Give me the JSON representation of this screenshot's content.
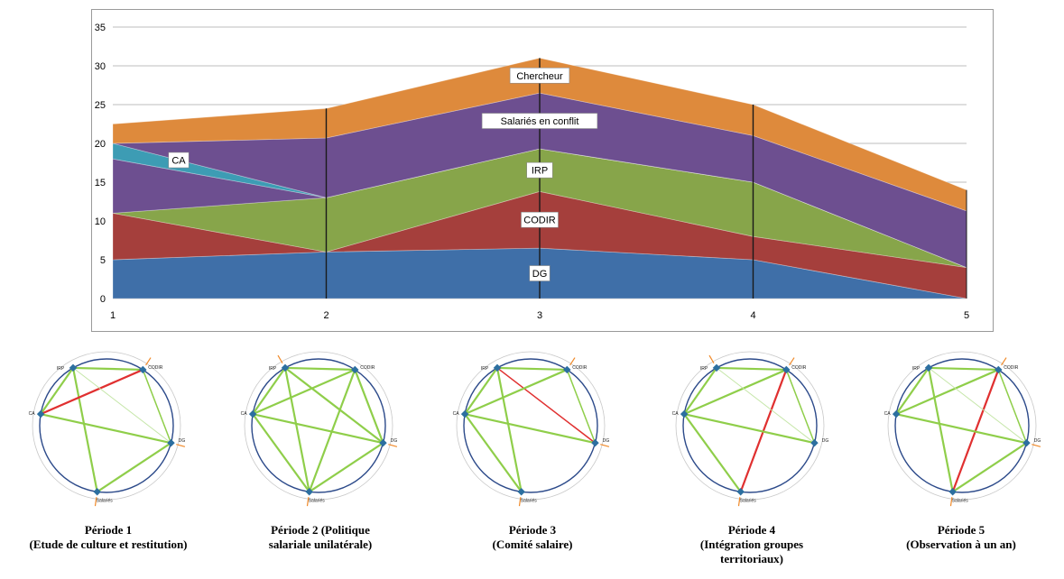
{
  "chart_data": {
    "type": "area",
    "x": [
      1,
      2,
      3,
      4,
      5
    ],
    "ylim": [
      0,
      35
    ],
    "yticks": [
      0,
      5,
      10,
      15,
      20,
      25,
      30,
      35
    ],
    "grid": true,
    "series": [
      {
        "name": "DG",
        "values": [
          5,
          6,
          6.5,
          5,
          0
        ],
        "color": "#3f6fa8"
      },
      {
        "name": "CODIR",
        "values": [
          6,
          0,
          7.3,
          3,
          4
        ],
        "color": "#a53f3c"
      },
      {
        "name": "IRP",
        "values": [
          0,
          7,
          5.5,
          7,
          0
        ],
        "color": "#87a54a"
      },
      {
        "name": "",
        "values": [
          7,
          0,
          0,
          0,
          0
        ],
        "color": "#6d4f90"
      },
      {
        "name": "CA",
        "values": [
          2,
          0,
          0,
          0,
          0
        ],
        "color": "#3d9cb4"
      },
      {
        "name": "Salariés en conflit",
        "values": [
          0,
          7.7,
          7.2,
          6,
          7.3
        ],
        "color": "#6d4f90"
      },
      {
        "name": "Chercheur",
        "values": [
          2.5,
          3.8,
          4.5,
          4,
          2.7
        ],
        "color": "#de8a3c"
      }
    ]
  },
  "networks": [
    {
      "caption_line1": "Période 1",
      "caption_line2": "(Etude de culture et restitution)",
      "caption_line3": "",
      "nodes": {
        "irp": "IRP",
        "codir": "CODIR",
        "dg": "DG",
        "ca": "CA",
        "salaries": "Salariés"
      },
      "edges": [
        {
          "from": "irp",
          "to": "codir",
          "color": "#8fce4a",
          "weight": "strong"
        },
        {
          "from": "irp",
          "to": "salaries",
          "color": "#8fce4a",
          "weight": "strong"
        },
        {
          "from": "irp",
          "to": "ca",
          "color": "#8fce4a",
          "weight": "strong"
        },
        {
          "from": "codir",
          "to": "dg",
          "color": "#8fce4a",
          "weight": "medium"
        },
        {
          "from": "codir",
          "to": "ca",
          "color": "#e03030",
          "weight": "strong"
        },
        {
          "from": "dg",
          "to": "ca",
          "color": "#8fce4a",
          "weight": "strong"
        },
        {
          "from": "dg",
          "to": "salaries",
          "color": "#8fce4a",
          "weight": "strong"
        },
        {
          "from": "irp",
          "to": "dg",
          "color": "#c5e6a8",
          "weight": "light"
        }
      ],
      "tension_marks": [
        "codir",
        "dg",
        "salaries"
      ]
    },
    {
      "caption_line1": "Période 2 (Politique",
      "caption_line2": "salariale unilatérale)",
      "caption_line3": "",
      "nodes": {
        "irp": "IRP",
        "codir": "CODIR",
        "dg": "DG",
        "ca": "CA",
        "salaries": "Salariés"
      },
      "edges": [
        {
          "from": "irp",
          "to": "codir",
          "color": "#8fce4a",
          "weight": "strong"
        },
        {
          "from": "irp",
          "to": "ca",
          "color": "#8fce4a",
          "weight": "strong"
        },
        {
          "from": "irp",
          "to": "salaries",
          "color": "#8fce4a",
          "weight": "strong"
        },
        {
          "from": "irp",
          "to": "dg",
          "color": "#8fce4a",
          "weight": "strong"
        },
        {
          "from": "codir",
          "to": "dg",
          "color": "#8fce4a",
          "weight": "strong"
        },
        {
          "from": "codir",
          "to": "ca",
          "color": "#8fce4a",
          "weight": "strong"
        },
        {
          "from": "codir",
          "to": "salaries",
          "color": "#8fce4a",
          "weight": "strong"
        },
        {
          "from": "dg",
          "to": "ca",
          "color": "#8fce4a",
          "weight": "strong"
        },
        {
          "from": "dg",
          "to": "salaries",
          "color": "#8fce4a",
          "weight": "strong"
        },
        {
          "from": "ca",
          "to": "salaries",
          "color": "#8fce4a",
          "weight": "strong"
        }
      ],
      "tension_marks": [
        "irp",
        "dg",
        "salaries"
      ]
    },
    {
      "caption_line1": "Période 3",
      "caption_line2": "(Comité salaire)",
      "caption_line3": "",
      "nodes": {
        "irp": "IRP",
        "codir": "CODIR",
        "dg": "DG",
        "ca": "CA",
        "salaries": "Salariés"
      },
      "edges": [
        {
          "from": "irp",
          "to": "codir",
          "color": "#8fce4a",
          "weight": "strong"
        },
        {
          "from": "irp",
          "to": "ca",
          "color": "#8fce4a",
          "weight": "strong"
        },
        {
          "from": "irp",
          "to": "salaries",
          "color": "#8fce4a",
          "weight": "strong"
        },
        {
          "from": "irp",
          "to": "dg",
          "color": "#e03030",
          "weight": "medium"
        },
        {
          "from": "codir",
          "to": "dg",
          "color": "#8fce4a",
          "weight": "medium"
        },
        {
          "from": "codir",
          "to": "ca",
          "color": "#8fce4a",
          "weight": "strong"
        },
        {
          "from": "dg",
          "to": "ca",
          "color": "#8fce4a",
          "weight": "strong"
        },
        {
          "from": "ca",
          "to": "salaries",
          "color": "#8fce4a",
          "weight": "strong"
        }
      ],
      "tension_marks": [
        "codir",
        "dg",
        "salaries"
      ]
    },
    {
      "caption_line1": "Période 4",
      "caption_line2": "(Intégration groupes",
      "caption_line3": "territoriaux)",
      "nodes": {
        "irp": "IRP",
        "codir": "CODIR",
        "dg": "DG",
        "ca": "CA",
        "salaries": "Salariés"
      },
      "edges": [
        {
          "from": "irp",
          "to": "codir",
          "color": "#8fce4a",
          "weight": "strong"
        },
        {
          "from": "irp",
          "to": "ca",
          "color": "#8fce4a",
          "weight": "strong"
        },
        {
          "from": "codir",
          "to": "ca",
          "color": "#8fce4a",
          "weight": "strong"
        },
        {
          "from": "codir",
          "to": "salaries",
          "color": "#e03030",
          "weight": "strong"
        },
        {
          "from": "codir",
          "to": "dg",
          "color": "#8fce4a",
          "weight": "medium"
        },
        {
          "from": "dg",
          "to": "ca",
          "color": "#8fce4a",
          "weight": "strong"
        },
        {
          "from": "ca",
          "to": "salaries",
          "color": "#8fce4a",
          "weight": "strong"
        },
        {
          "from": "irp",
          "to": "dg",
          "color": "#c5e6a8",
          "weight": "light"
        }
      ],
      "tension_marks": [
        "irp",
        "codir",
        "salaries"
      ]
    },
    {
      "caption_line1": "Période 5",
      "caption_line2": "(Observation à un an)",
      "caption_line3": "",
      "nodes": {
        "irp": "IRP",
        "codir": "CODIR",
        "dg": "DG",
        "ca": "CA",
        "salaries": "Salariés"
      },
      "edges": [
        {
          "from": "irp",
          "to": "codir",
          "color": "#8fce4a",
          "weight": "strong"
        },
        {
          "from": "irp",
          "to": "ca",
          "color": "#8fce4a",
          "weight": "strong"
        },
        {
          "from": "irp",
          "to": "salaries",
          "color": "#8fce4a",
          "weight": "strong"
        },
        {
          "from": "codir",
          "to": "ca",
          "color": "#8fce4a",
          "weight": "strong"
        },
        {
          "from": "codir",
          "to": "salaries",
          "color": "#e03030",
          "weight": "strong"
        },
        {
          "from": "codir",
          "to": "dg",
          "color": "#8fce4a",
          "weight": "medium"
        },
        {
          "from": "dg",
          "to": "ca",
          "color": "#8fce4a",
          "weight": "strong"
        },
        {
          "from": "dg",
          "to": "salaries",
          "color": "#8fce4a",
          "weight": "strong"
        },
        {
          "from": "irp",
          "to": "dg",
          "color": "#c5e6a8",
          "weight": "light"
        }
      ],
      "tension_marks": [
        "codir",
        "dg",
        "salaries"
      ]
    }
  ]
}
